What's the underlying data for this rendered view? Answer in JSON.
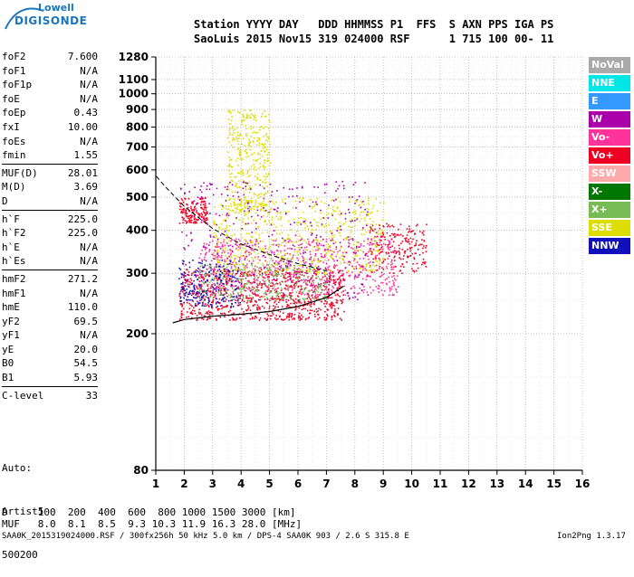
{
  "logo": {
    "line1": "Lowell",
    "line2": "DIGISONDE"
  },
  "header": {
    "row1": "Station YYYY DAY   DDD HHMMSS P1  FFS  S AXN PPS IGA PS",
    "row2": "SaoLuis 2015 Nov15 319 024000 RSF      1 715 100 00- 11"
  },
  "params": [
    [
      [
        "foF2",
        "7.600"
      ],
      [
        "foF1",
        "N/A"
      ],
      [
        "foF1p",
        "N/A"
      ],
      [
        "foE",
        "N/A"
      ],
      [
        "foEp",
        "0.43"
      ],
      [
        "fxI",
        "10.00"
      ],
      [
        "foEs",
        "N/A"
      ],
      [
        "fmin",
        "1.55"
      ]
    ],
    [
      [
        "MUF(D)",
        "28.01"
      ],
      [
        "M(D)",
        "3.69"
      ],
      [
        "D",
        "N/A"
      ]
    ],
    [
      [
        "h`F",
        "225.0"
      ],
      [
        "h`F2",
        "225.0"
      ],
      [
        "h`E",
        "N/A"
      ],
      [
        "h`Es",
        "N/A"
      ]
    ],
    [
      [
        "hmF2",
        "271.2"
      ],
      [
        "hmF1",
        "N/A"
      ],
      [
        "hmE",
        "110.0"
      ],
      [
        "yF2",
        "69.5"
      ],
      [
        "yF1",
        "N/A"
      ],
      [
        "yE",
        "20.0"
      ],
      [
        "B0",
        "54.5"
      ],
      [
        "B1",
        "5.93"
      ]
    ],
    [
      [
        "C-level",
        "33"
      ]
    ]
  ],
  "auto": {
    "line1": "Auto:",
    "line2": "Artist5",
    "line3": "500200"
  },
  "dmuf": {
    "d_label": "D",
    "d_values": "100  200  400  600  800 1000 1500 3000 [km]",
    "muf_label": "MUF",
    "muf_values": "8.0  8.1  8.5  9.3 10.3 11.9 16.3 28.0 [MHz]"
  },
  "footer": {
    "left": "SAA0K_2015319024000.RSF / 300fx256h 50 kHz 5.0 km / DPS-4 SAA0K 903 / 2.6 S 315.8 E",
    "right": "Ion2Png 1.3.17"
  },
  "legend": [
    {
      "label": "NoVal",
      "color": "#aaaaaa"
    },
    {
      "label": "NNE",
      "color": "#00e5e5"
    },
    {
      "label": "E",
      "color": "#3399ff"
    },
    {
      "label": "W",
      "color": "#aa00aa"
    },
    {
      "label": "Vo-",
      "color": "#ff3399"
    },
    {
      "label": "Vo+",
      "color": "#ee0022"
    },
    {
      "label": "SSW",
      "color": "#ffaaaa"
    },
    {
      "label": "X-",
      "color": "#007700"
    },
    {
      "label": "X+",
      "color": "#77bb55"
    },
    {
      "label": "SSE",
      "color": "#dddd00"
    },
    {
      "label": "NNW",
      "color": "#1111bb"
    }
  ],
  "chart_data": {
    "type": "scatter",
    "title": "",
    "xlabel": "",
    "ylabel": "",
    "xlim": [
      1,
      16
    ],
    "ylim_log": [
      80,
      1280
    ],
    "x_ticks": [
      1,
      2,
      3,
      4,
      5,
      6,
      7,
      8,
      9,
      10,
      11,
      12,
      13,
      14,
      15,
      16
    ],
    "y_ticks": [
      80,
      200,
      300,
      400,
      500,
      600,
      700,
      800,
      900,
      1000,
      1100,
      1280
    ],
    "grid": true,
    "clusters": [
      {
        "name": "F-trace-low",
        "x": [
          1.8,
          7.6
        ],
        "y": [
          220,
          310
        ],
        "color": "#ee0022",
        "n": 900
      },
      {
        "name": "F-trace-mid",
        "x": [
          2.5,
          9.5
        ],
        "y": [
          260,
          380
        ],
        "color": "#ff3399",
        "n": 700
      },
      {
        "name": "F-trace-spread",
        "x": [
          3,
          9
        ],
        "y": [
          300,
          500
        ],
        "color": "#dddd00",
        "n": 600
      },
      {
        "name": "high-spread",
        "x": [
          3.5,
          5
        ],
        "y": [
          450,
          900
        ],
        "color": "#dddd00",
        "n": 350
      },
      {
        "name": "green-layer",
        "x": [
          2.5,
          7
        ],
        "y": [
          250,
          320
        ],
        "color": "#77bb55",
        "n": 300
      },
      {
        "name": "purple",
        "x": [
          1.8,
          8.5
        ],
        "y": [
          250,
          560
        ],
        "color": "#aa00aa",
        "n": 400
      },
      {
        "name": "blue",
        "x": [
          1.8,
          4
        ],
        "y": [
          240,
          330
        ],
        "color": "#1111bb",
        "n": 200
      },
      {
        "name": "red-high",
        "x": [
          1.8,
          2.8
        ],
        "y": [
          420,
          500
        ],
        "color": "#ee0022",
        "n": 150
      },
      {
        "name": "red-right",
        "x": [
          8.5,
          10.5
        ],
        "y": [
          300,
          420
        ],
        "color": "#ee0022",
        "n": 200
      }
    ],
    "profile_curve": {
      "x": [
        1.6,
        2,
        3,
        4,
        5,
        6,
        7,
        7.6
      ],
      "y": [
        215,
        220,
        225,
        228,
        232,
        240,
        255,
        275
      ]
    },
    "dashed_curve": {
      "x": [
        1.02,
        1.3,
        2,
        3,
        4,
        5,
        6,
        7
      ],
      "y": [
        575,
        540,
        470,
        405,
        365,
        340,
        320,
        305
      ]
    }
  }
}
